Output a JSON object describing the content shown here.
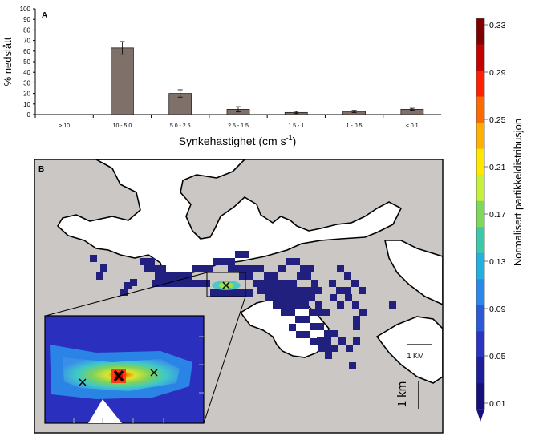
{
  "panel_a": {
    "label": "A",
    "ylabel": "% nedslått",
    "xlabel": "Synkehastighet  (cm s",
    "xlabel_sup": "-1",
    "xlabel_end": ")"
  },
  "panel_b": {
    "label": "B",
    "inset_scale_label": "1 KM",
    "scale_label": "1 km"
  },
  "colorbar": {
    "title": "Normalisert partikkeldistribusjon",
    "ticks": [
      "0.33",
      "0.29",
      "0.25",
      "0.21",
      "0.17",
      "0.13",
      "0.09",
      "0.05",
      "0.01"
    ],
    "colors": [
      "#7f0000",
      "#c40000",
      "#ff2000",
      "#ff6a00",
      "#ffb000",
      "#ffe800",
      "#c6f03a",
      "#7fd85a",
      "#3ec8a8",
      "#22b0e0",
      "#2a88e8",
      "#2a5ad8",
      "#2a34c0",
      "#1f1e9a",
      "#16107a"
    ]
  },
  "chart_data": {
    "type": "bar",
    "categories": [
      "> 10",
      "10 - 5.0",
      "5.0 - 2.5",
      "2.5 - 1.5",
      "1.5 - 1",
      "1 - 0.5",
      "≤ 0.1"
    ],
    "values": [
      0,
      63,
      20,
      5,
      2,
      3,
      5
    ],
    "errors": [
      0,
      6,
      3.5,
      2.5,
      1,
      1,
      1
    ],
    "yticks": [
      0,
      10,
      20,
      30,
      40,
      50,
      60,
      70,
      80,
      90,
      100
    ],
    "ylim": [
      0,
      100
    ],
    "bar_color": "#7f706a"
  }
}
